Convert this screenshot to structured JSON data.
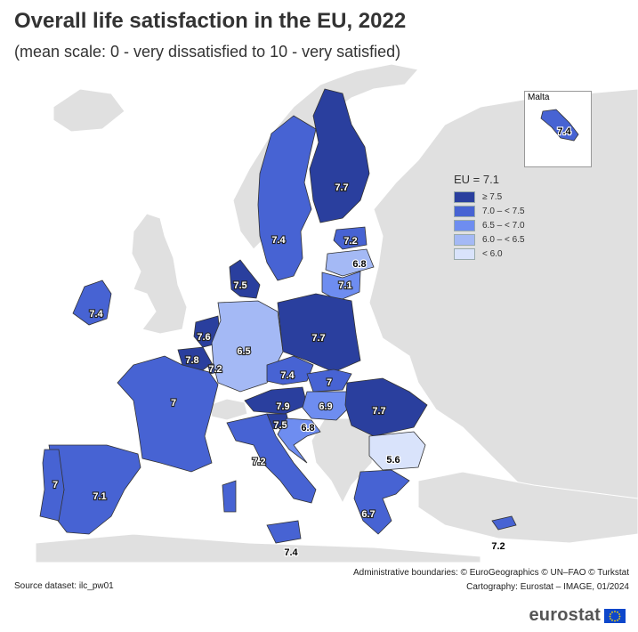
{
  "title": "Overall life satisfaction in the EU, 2022",
  "subtitle": "(mean scale: 0 - very dissatisfied to 10 - very satisfied)",
  "inset": {
    "label": "Malta",
    "value": "7.4"
  },
  "legend": {
    "title": "EU = 7.1",
    "classes": [
      {
        "label": "≥ 7.5",
        "color": "#2a3f9e"
      },
      {
        "label": "7.0 – < 7.5",
        "color": "#4763d3"
      },
      {
        "label": "6.5 – < 7.0",
        "color": "#6e8df0"
      },
      {
        "label": "6.0 – < 6.5",
        "color": "#a4b9f5"
      },
      {
        "label": "< 6.0",
        "color": "#d9e3fb"
      }
    ]
  },
  "countries": [
    {
      "name": "Finland",
      "value": "7.7"
    },
    {
      "name": "Sweden",
      "value": "7.4"
    },
    {
      "name": "Estonia",
      "value": "7.2"
    },
    {
      "name": "Latvia",
      "value": "6.8"
    },
    {
      "name": "Lithuania",
      "value": "7.1"
    },
    {
      "name": "Denmark",
      "value": "7.5"
    },
    {
      "name": "Ireland",
      "value": "7.4"
    },
    {
      "name": "Netherlands",
      "value": "7.6"
    },
    {
      "name": "Belgium",
      "value": "7.8"
    },
    {
      "name": "Luxembourg",
      "value": "7.2"
    },
    {
      "name": "Germany",
      "value": "6.5"
    },
    {
      "name": "Poland",
      "value": "7.7"
    },
    {
      "name": "Czechia",
      "value": "7.4"
    },
    {
      "name": "Slovakia",
      "value": "7"
    },
    {
      "name": "Austria",
      "value": "7.9"
    },
    {
      "name": "Hungary",
      "value": "6.9"
    },
    {
      "name": "Slovenia",
      "value": "7.5"
    },
    {
      "name": "Croatia",
      "value": "6.8"
    },
    {
      "name": "Romania",
      "value": "7.7"
    },
    {
      "name": "Bulgaria",
      "value": "5.6"
    },
    {
      "name": "France",
      "value": "7"
    },
    {
      "name": "Spain",
      "value": "7.1"
    },
    {
      "name": "Portugal",
      "value": "7"
    },
    {
      "name": "Italy",
      "value": "7.2"
    },
    {
      "name": "Greece",
      "value": "6.7"
    },
    {
      "name": "Cyprus",
      "value": "7.2"
    },
    {
      "name": "Malta",
      "value": "7.4"
    }
  ],
  "footer": {
    "boundaries": "Administrative boundaries: © EuroGeographics © UN–FAO © Turkstat",
    "cartography": "Cartography: Eurostat – IMAGE, 01/2024",
    "source": "Source dataset: ilc_pw01",
    "brand": "eurostat"
  },
  "colors": {
    "sea": "#ffffff",
    "non_eu": "#e0e0e0",
    "border": "#333333"
  }
}
